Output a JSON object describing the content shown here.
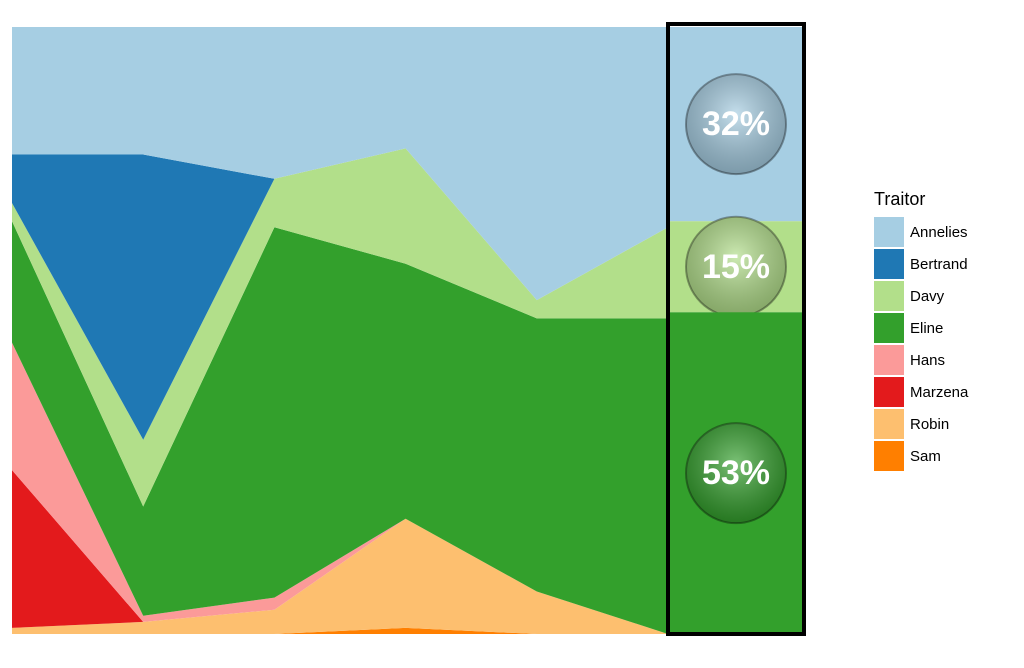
{
  "chart_data": {
    "type": "area",
    "stacked": true,
    "normalized": true,
    "x": [
      1,
      2,
      3,
      4,
      5,
      6
    ],
    "yrange": [
      0,
      100
    ],
    "grid": false,
    "legend": {
      "title": "Traitor",
      "position": "right"
    },
    "series": [
      {
        "name": "Sam",
        "color": "#ff7f00",
        "values": [
          0,
          0,
          0,
          1,
          0,
          0
        ]
      },
      {
        "name": "Robin",
        "color": "#fdbf6f",
        "values": [
          1,
          2,
          4,
          18,
          7,
          0
        ]
      },
      {
        "name": "Marzena",
        "color": "#e31a1c",
        "values": [
          26,
          0,
          0,
          0,
          0,
          0
        ]
      },
      {
        "name": "Hans",
        "color": "#fb9a99",
        "values": [
          21,
          1,
          2,
          0,
          0,
          0
        ]
      },
      {
        "name": "Eline",
        "color": "#33a02c",
        "values": [
          20,
          18,
          61,
          42,
          45,
          52
        ]
      },
      {
        "name": "Davy",
        "color": "#b2df8a",
        "values": [
          3,
          11,
          8,
          19,
          3,
          15
        ]
      },
      {
        "name": "Bertrand",
        "color": "#1f78b4",
        "values": [
          8,
          47,
          0,
          0,
          0,
          0
        ]
      },
      {
        "name": "Annelies",
        "color": "#a6cee3",
        "values": [
          21,
          21,
          25,
          20,
          45,
          33
        ]
      }
    ],
    "prediction": [
      {
        "name": "Annelies",
        "label": "32%",
        "value": 32
      },
      {
        "name": "Davy",
        "label": "15%",
        "value": 15
      },
      {
        "name": "Eline",
        "label": "53%",
        "value": 53
      }
    ]
  }
}
